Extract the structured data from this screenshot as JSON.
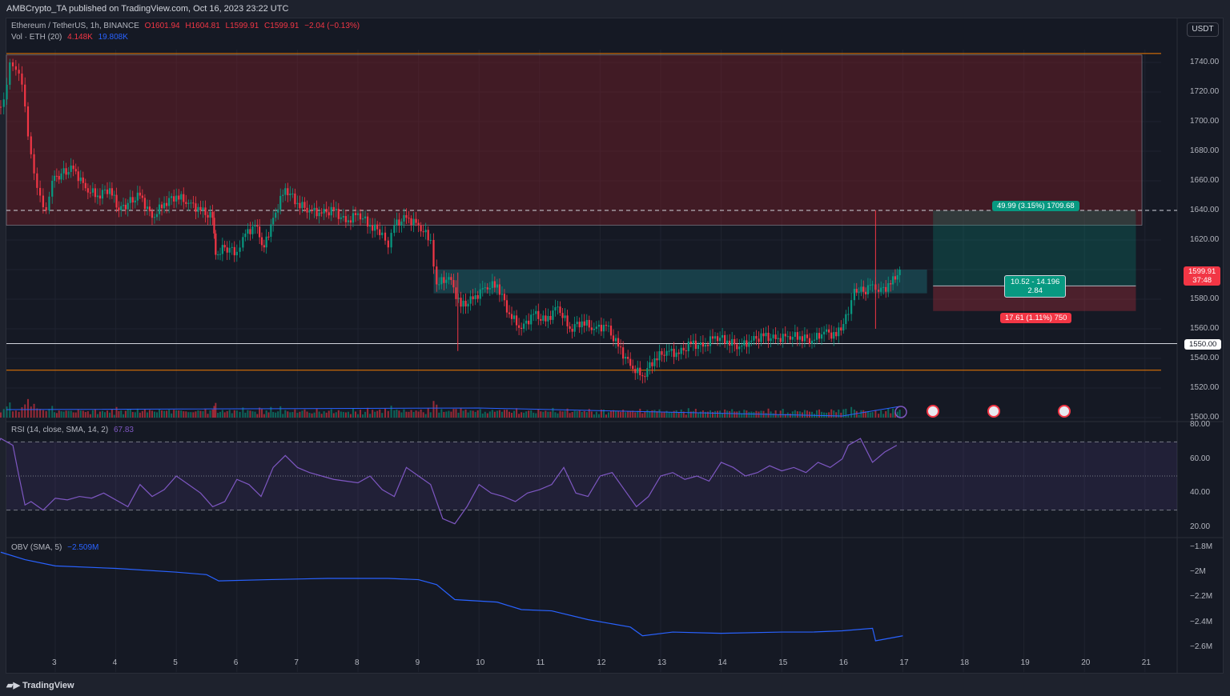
{
  "header": {
    "published": "AMBCrypto_TA published on TradingView.com, Oct 16, 2023 23:22 UTC"
  },
  "legend": {
    "symbol": "Ethereum / TetherUS, 1h, BINANCE",
    "open": "O1601.94",
    "high": "H1604.81",
    "low": "L1599.91",
    "close": "C1599.91",
    "change": "−2.04 (−0.13%)",
    "vol_label": "Vol · ETH (20)",
    "vol_value": "4.148K",
    "vol_ma": "19.808K",
    "rsi_label": "RSI (14, close, SMA, 14, 2)",
    "rsi_value": "67.83",
    "obv_label": "OBV (SMA, 5)",
    "obv_value": "−2.509M"
  },
  "currency": "USDT",
  "price_axis": [
    "1740.00",
    "1720.00",
    "1700.00",
    "1680.00",
    "1660.00",
    "1640.00",
    "1620.00",
    "1580.00",
    "1560.00",
    "1540.00",
    "1520.00",
    "1500.00"
  ],
  "rsi_axis": [
    "80.00",
    "60.00",
    "40.00",
    "20.00"
  ],
  "obv_axis": [
    "−1.8M",
    "−2M",
    "−2.2M",
    "−2.4M",
    "−2.6M"
  ],
  "time_axis": [
    "3",
    "4",
    "5",
    "6",
    "7",
    "8",
    "9",
    "10",
    "11",
    "12",
    "13",
    "14",
    "15",
    "16",
    "17",
    "18",
    "19",
    "20",
    "21"
  ],
  "last_price": {
    "value": "1599.91",
    "countdown": "37:48"
  },
  "level_label": "1550.00",
  "position": {
    "target_label": "49.99 (3.15%) 1709.68",
    "center_label_1": "10.52 - 14.196",
    "center_label_2": "2.84",
    "stop_label": "17.61 (1.11%) 750"
  },
  "brand": "TradingView",
  "colors": {
    "up": "#089981",
    "down": "#f23645",
    "rsi": "#7e57c2",
    "obv": "#2962ff",
    "supply_zone": "#5b1e26",
    "demand_zone": "#1d5b63",
    "level_orange": "#f57c00"
  },
  "chart_data": [
    {
      "type": "candlestick",
      "title": "Ethereum / TetherUS, 1h, BINANCE",
      "ylim": [
        1500,
        1750
      ],
      "x": [
        2.15,
        2.25,
        2.35,
        2.45,
        2.55,
        2.65,
        2.75,
        2.85,
        2.95,
        3.1,
        3.3,
        3.5,
        3.7,
        3.9,
        4.05,
        4.2,
        4.4,
        4.6,
        4.8,
        5.0,
        5.2,
        5.4,
        5.6,
        5.65,
        5.8,
        6.0,
        6.1,
        6.3,
        6.45,
        6.6,
        6.8,
        7.0,
        7.2,
        7.4,
        7.6,
        7.8,
        8.0,
        8.2,
        8.4,
        8.5,
        8.6,
        8.8,
        9.0,
        9.2,
        9.3,
        9.5,
        9.7,
        9.9,
        10.1,
        10.3,
        10.5,
        10.7,
        10.9,
        11.1,
        11.3,
        11.5,
        11.7,
        11.9,
        12.1,
        12.3,
        12.5,
        12.7,
        12.9,
        13.1,
        13.3,
        13.5,
        13.7,
        13.9,
        14.1,
        14.3,
        14.5,
        14.7,
        14.9,
        15.1,
        15.3,
        15.5,
        15.7,
        15.9,
        16.1,
        16.2,
        16.35,
        16.5,
        16.6,
        16.8,
        16.95
      ],
      "close": [
        1715,
        1740,
        1735,
        1725,
        1690,
        1665,
        1650,
        1640,
        1660,
        1665,
        1668,
        1655,
        1650,
        1655,
        1640,
        1645,
        1650,
        1635,
        1645,
        1650,
        1645,
        1640,
        1635,
        1610,
        1615,
        1612,
        1622,
        1630,
        1615,
        1635,
        1655,
        1645,
        1640,
        1638,
        1640,
        1632,
        1638,
        1630,
        1625,
        1615,
        1630,
        1635,
        1630,
        1620,
        1590,
        1595,
        1575,
        1580,
        1588,
        1590,
        1570,
        1560,
        1570,
        1565,
        1575,
        1560,
        1565,
        1560,
        1562,
        1548,
        1535,
        1528,
        1540,
        1545,
        1543,
        1550,
        1548,
        1555,
        1552,
        1548,
        1552,
        1555,
        1553,
        1555,
        1555,
        1552,
        1558,
        1555,
        1570,
        1587,
        1585,
        1590,
        1585,
        1590,
        1600
      ],
      "annotations": {
        "supply_zone": [
          1630,
          1745
        ],
        "demand_zone": [
          1584,
          1600
        ],
        "horizontal_levels": [
          1746,
          1640,
          1550,
          1532
        ],
        "long_position": {
          "entry": 1589,
          "target": 1640,
          "stop": 1572
        }
      }
    },
    {
      "type": "line",
      "title": "RSI (14, close, SMA, 14, 2)",
      "ylim": [
        20,
        80
      ],
      "bands": [
        30,
        50,
        70
      ],
      "x": [
        2.0,
        2.1,
        2.3,
        2.4,
        2.5,
        2.6,
        2.8,
        3.0,
        3.2,
        3.4,
        3.6,
        3.8,
        4.0,
        4.2,
        4.4,
        4.6,
        4.8,
        5.0,
        5.2,
        5.4,
        5.6,
        5.8,
        6.0,
        6.2,
        6.4,
        6.6,
        6.8,
        7.0,
        7.2,
        7.4,
        7.6,
        7.8,
        8.0,
        8.2,
        8.4,
        8.6,
        8.8,
        9.0,
        9.2,
        9.4,
        9.6,
        9.8,
        10.0,
        10.2,
        10.4,
        10.6,
        10.8,
        11.0,
        11.2,
        11.4,
        11.6,
        11.8,
        12.0,
        12.2,
        12.4,
        12.6,
        12.8,
        13.0,
        13.2,
        13.4,
        13.6,
        13.8,
        14.0,
        14.2,
        14.4,
        14.6,
        14.8,
        15.0,
        15.2,
        15.4,
        15.6,
        15.8,
        16.0,
        16.1,
        16.3,
        16.5,
        16.7,
        16.9
      ],
      "y": [
        65,
        72,
        68,
        50,
        33,
        35,
        30,
        37,
        36,
        38,
        37,
        40,
        36,
        32,
        45,
        38,
        42,
        50,
        45,
        40,
        32,
        35,
        48,
        45,
        38,
        55,
        62,
        55,
        52,
        50,
        48,
        47,
        46,
        50,
        42,
        38,
        55,
        50,
        45,
        25,
        22,
        32,
        45,
        40,
        38,
        35,
        40,
        42,
        45,
        55,
        40,
        38,
        50,
        52,
        42,
        32,
        38,
        50,
        52,
        48,
        50,
        47,
        58,
        55,
        50,
        52,
        56,
        53,
        55,
        52,
        58,
        55,
        60,
        68,
        72,
        58,
        64,
        68
      ]
    },
    {
      "type": "line",
      "title": "OBV (SMA, 5)",
      "ylim": [
        -2.65,
        -1.75
      ],
      "x": [
        2.1,
        2.5,
        3.0,
        4.0,
        5.0,
        5.5,
        5.7,
        6.5,
        7.5,
        8.5,
        9.0,
        9.3,
        9.6,
        10.3,
        10.7,
        11.2,
        11.8,
        12.5,
        12.7,
        13.2,
        14.0,
        15.0,
        15.5,
        16.0,
        16.5,
        16.55,
        17.0
      ],
      "y": [
        -1.84,
        -1.9,
        -1.95,
        -1.97,
        -2.0,
        -2.02,
        -2.07,
        -2.06,
        -2.05,
        -2.05,
        -2.06,
        -2.1,
        -2.22,
        -2.24,
        -2.3,
        -2.31,
        -2.38,
        -2.44,
        -2.51,
        -2.48,
        -2.49,
        -2.48,
        -2.48,
        -2.47,
        -2.45,
        -2.55,
        -2.51
      ]
    }
  ]
}
